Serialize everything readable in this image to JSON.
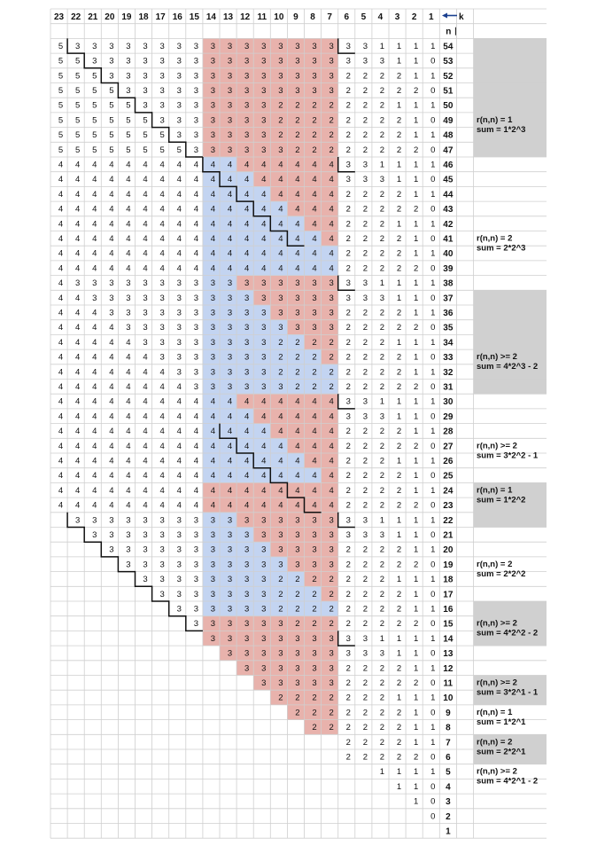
{
  "header": {
    "k_label": "k",
    "n_label": "n",
    "k_columns": [
      "23",
      "22",
      "21",
      "20",
      "19",
      "18",
      "17",
      "16",
      "15",
      "14",
      "13",
      "12",
      "11",
      "10",
      "9",
      "8",
      "7",
      "6",
      "5",
      "4",
      "3",
      "2",
      "1"
    ]
  },
  "rows_n": [
    "54",
    "53",
    "52",
    "51",
    "50",
    "49",
    "48",
    "47",
    "46",
    "45",
    "44",
    "43",
    "42",
    "41",
    "40",
    "39",
    "38",
    "37",
    "36",
    "35",
    "34",
    "33",
    "32",
    "31",
    "30",
    "29",
    "28",
    "27",
    "26",
    "25",
    "24",
    "23",
    "22",
    "21",
    "20",
    "19",
    "18",
    "17",
    "16",
    "15",
    "14",
    "13",
    "12",
    "11",
    "10",
    "9",
    "8",
    "7",
    "6",
    "5",
    "4",
    "3",
    "2",
    "1"
  ],
  "colors": {
    "red": "#e8b2ac",
    "blue": "#c3d4f1",
    "gray": "#d0d0d0",
    "grid": "#cfcfcf",
    "staircase": "#111111",
    "arrow": "#1a3f8f"
  },
  "annotations": [
    {
      "lines": [
        "r(n,n) = 1",
        "sum = 1*2^3"
      ]
    },
    {
      "lines": [
        "r(n,n) = 2",
        "sum = 2*2^3"
      ]
    },
    {
      "lines": [
        "r(n,n) >= 2",
        "sum = 4*2^3 - 2"
      ]
    },
    {
      "lines": [
        "r(n,n) >= 2",
        "sum = 3*2^2 - 1"
      ]
    },
    {
      "lines": [
        "r(n,n) = 1",
        "sum = 1*2^2"
      ]
    },
    {
      "lines": [
        "r(n,n) = 2",
        "sum = 2*2^2"
      ]
    },
    {
      "lines": [
        "r(n,n) >= 2",
        "sum = 4*2^2 - 2"
      ]
    },
    {
      "lines": [
        "r(n,n) >= 2",
        "sum = 3*2^1 - 1"
      ]
    },
    {
      "lines": [
        "r(n,n) = 1",
        "sum = 1*2^1"
      ]
    },
    {
      "lines": [
        "r(n,n) = 2",
        "sum = 2*2^1"
      ]
    },
    {
      "lines": [
        "r(n,n) >= 2",
        "sum = 4*2^1 - 2"
      ]
    }
  ]
}
